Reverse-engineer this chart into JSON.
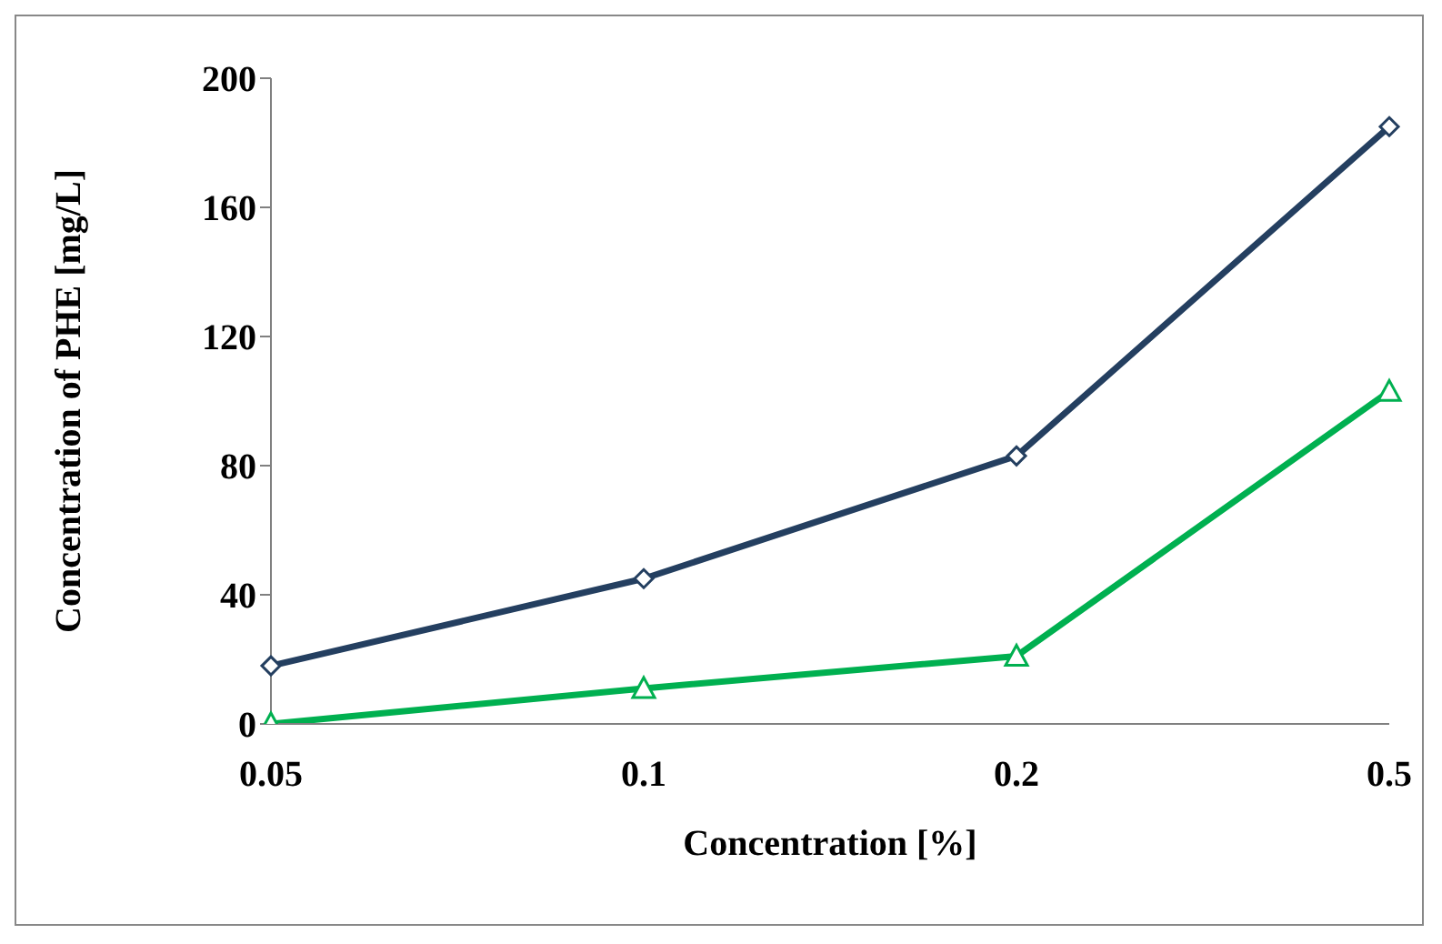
{
  "chart_data": {
    "type": "line",
    "xlabel": "Concentration [%]",
    "ylabel": "Concentration of PHE [mg/L]",
    "categories": [
      "0.05",
      "0.1",
      "0.2",
      "0.5"
    ],
    "series": [
      {
        "color": "#243f60",
        "marker": "diamond",
        "values": [
          18,
          45,
          83,
          185
        ]
      },
      {
        "color": "#00b050",
        "marker": "triangle",
        "values": [
          0,
          11,
          21,
          103
        ]
      }
    ],
    "ylim": [
      0,
      200
    ],
    "yticks": [
      0,
      40,
      80,
      120,
      160,
      200
    ],
    "grid": false,
    "legend": false,
    "line_style": "solid"
  }
}
